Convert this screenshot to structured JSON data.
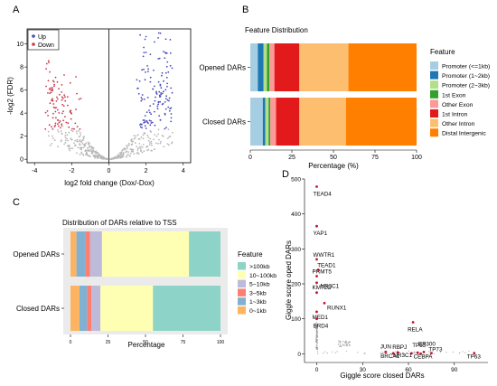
{
  "panel_labels": {
    "a": "A",
    "b": "B",
    "c": "C",
    "d": "D"
  },
  "colors": {
    "up": "#4a4ab8",
    "down": "#c7394a",
    "ns": "#b8b8b8",
    "gene": "#c8102e",
    "promoter_lt1kb": "#a6cee3",
    "promoter_1_2kb": "#1f78b4",
    "promoter_2_3kb": "#b2df8a",
    "exon1": "#33a02c",
    "other_exon": "#fb9a99",
    "intron1": "#e31a1c",
    "other_intron": "#fdbf6f",
    "distal": "#ff7f00",
    "gt100k": "#8dd3c7",
    "k10_100": "#ffffb3",
    "k5_10": "#bebada",
    "k3_5": "#fb8072",
    "k1_3": "#80b1d3",
    "k0_1": "#fdb462"
  },
  "chart_data": [
    {
      "type": "scatter",
      "id": "A",
      "xlabel": "log2 fold change (Dox/-Dox)",
      "ylabel": "-log2 (FDR)",
      "xlim": [
        -4.4,
        4.4
      ],
      "ylim": [
        -0.3,
        11.3
      ],
      "xticks": [
        -4,
        -2,
        0,
        2,
        4
      ],
      "yticks": [
        0,
        2,
        4,
        6,
        8,
        10
      ],
      "legend": {
        "position": "top-left",
        "entries": [
          "Up",
          "Down"
        ]
      }
    },
    {
      "type": "bar",
      "id": "B",
      "orientation": "horizontal",
      "stacked": true,
      "title": "Feature Distribution",
      "xlabel": "Percentage (%)",
      "xlim": [
        0,
        100
      ],
      "xticks": [
        0,
        25,
        50,
        75,
        100
      ],
      "categories": [
        "Opened DARs",
        "Closed DARs"
      ],
      "legend_title": "Feature",
      "series": [
        {
          "name": "Promoter (<=1kb)",
          "values": [
            4.5,
            7.5
          ]
        },
        {
          "name": "Promoter (1~2kb)",
          "values": [
            3.5,
            1.5
          ]
        },
        {
          "name": "Promoter (2~3kb)",
          "values": [
            2.0,
            2.0
          ]
        },
        {
          "name": "1st Exon",
          "values": [
            1.5,
            1.0
          ]
        },
        {
          "name": "Other Exon",
          "values": [
            3.0,
            3.5
          ]
        },
        {
          "name": "1st Intron",
          "values": [
            15.0,
            14.0
          ]
        },
        {
          "name": "Other Intron",
          "values": [
            29.5,
            28.0
          ]
        },
        {
          "name": "Distal Intergenic",
          "values": [
            41.0,
            42.5
          ]
        }
      ]
    },
    {
      "type": "bar",
      "id": "C",
      "orientation": "horizontal",
      "stacked": true,
      "title": "Distribution of DARs relative to TSS",
      "xlabel": "Percentage",
      "xlim": [
        0,
        100
      ],
      "xticks": [
        0,
        25,
        50,
        75,
        100
      ],
      "categories": [
        "Opened DARs",
        "Closed DARs"
      ],
      "legend_title": "Feature",
      "series_order_bottom_to_top_legend": true,
      "series": [
        {
          "name": "0~1kb",
          "values": [
            4,
            6
          ]
        },
        {
          "name": "1~3kb",
          "values": [
            6,
            5
          ]
        },
        {
          "name": "3~5kb",
          "values": [
            3,
            3
          ]
        },
        {
          "name": "5~10kb",
          "values": [
            8,
            6
          ]
        },
        {
          "name": "10~100kb",
          "values": [
            58,
            35
          ]
        },
        {
          "name": ">100kb",
          "values": [
            21,
            45
          ]
        }
      ]
    },
    {
      "type": "scatter",
      "id": "D",
      "xlabel": "Giggle score closed DARs",
      "ylabel": "Giggle score oped DARs",
      "xlim": [
        -8,
        112
      ],
      "ylim": [
        -25,
        500
      ],
      "xticks": [
        0,
        30,
        60,
        90
      ],
      "yticks": [
        0,
        100,
        200,
        300,
        400,
        500
      ],
      "points": [
        {
          "label": "TEAD4",
          "x": 0,
          "y": 478
        },
        {
          "label": "YAP1",
          "x": 0,
          "y": 365
        },
        {
          "label": "WWTR1",
          "x": 0,
          "y": 270
        },
        {
          "label": "TEAD1",
          "x": 1,
          "y": 240
        },
        {
          "label": "PRMT5",
          "x": 0,
          "y": 222
        },
        {
          "label": "KMT2D",
          "x": 0,
          "y": 203
        },
        {
          "label": "NR3C1",
          "x": 0,
          "y": 175
        },
        {
          "label": "RUNX1",
          "x": 5,
          "y": 145
        },
        {
          "label": "MED1",
          "x": 0,
          "y": 120
        },
        {
          "label": "BRD4",
          "x": 0,
          "y": 100
        },
        {
          "label": "RELA",
          "x": 63,
          "y": 90
        },
        {
          "label": "JUN",
          "x": 45,
          "y": 5
        },
        {
          "label": "RBPJ",
          "x": 53,
          "y": 4
        },
        {
          "label": "TP53",
          "x": 66,
          "y": 3
        },
        {
          "label": "EP300",
          "x": 70,
          "y": 5
        },
        {
          "label": "TP73",
          "x": 75,
          "y": 2
        },
        {
          "label": "NR3C1",
          "x": 62,
          "y": 1
        },
        {
          "label": "CEBPA",
          "x": 68,
          "y": 0
        },
        {
          "label": "BRCA1",
          "x": 50,
          "y": 1
        },
        {
          "label": "TP63",
          "x": 103,
          "y": 2
        }
      ]
    }
  ]
}
